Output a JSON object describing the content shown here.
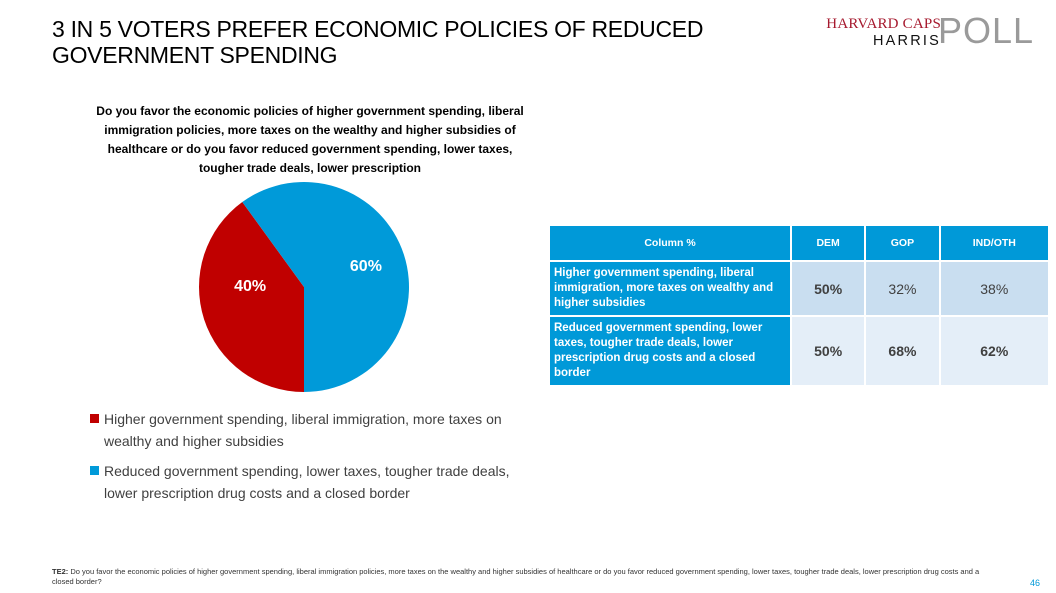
{
  "header": {
    "title_line1": "3 IN 5 VOTERS PREFER ECONOMIC POLICIES OF REDUCED",
    "title_line2": "GOVERNMENT SPENDING",
    "logo_top": "HARVARD CAPS",
    "logo_bottom": "HARRIS",
    "logo_poll": "POLL"
  },
  "chart_data": {
    "type": "pie",
    "title": "Do you favor the economic policies of higher government spending, liberal immigration policies, more taxes on the wealthy and higher subsidies of healthcare or do you favor reduced government spending, lower taxes, tougher trade deals, lower prescription",
    "slices": [
      {
        "label": "Higher government spending, liberal immigration, more taxes on wealthy and higher subsidies",
        "value": 40,
        "display": "40%",
        "color": "#c00000"
      },
      {
        "label": "Reduced government spending, lower taxes, tougher trade deals, lower prescription drug costs and a closed border",
        "value": 60,
        "display": "60%",
        "color": "#009ad9"
      }
    ],
    "legend_position": "bottom"
  },
  "legend": {
    "items": [
      {
        "label": "Higher government spending, liberal immigration, more taxes on wealthy and higher subsidies",
        "color": "#c00000"
      },
      {
        "label": "Reduced government spending, lower taxes, tougher trade deals, lower prescription drug costs and a closed border",
        "color": "#009ad9"
      }
    ]
  },
  "table": {
    "headers": [
      "Column %",
      "DEM",
      "GOP",
      "IND/OTH"
    ],
    "rows": [
      {
        "label": "Higher government spending, liberal immigration, more taxes on wealthy and higher subsidies",
        "values": [
          "50%",
          "32%",
          "38%"
        ]
      },
      {
        "label": "Reduced government spending, lower taxes, tougher trade deals, lower prescription drug costs and a closed border",
        "values": [
          "50%",
          "68%",
          "62%"
        ]
      }
    ]
  },
  "footer": {
    "code": "TE2:",
    "text": " Do you favor the economic policies of higher government spending, liberal immigration policies, more taxes on the wealthy and higher subsidies of healthcare or do you favor reduced government spending, lower taxes, tougher trade deals, lower prescription drug costs and a closed border?",
    "page_number": "46"
  }
}
